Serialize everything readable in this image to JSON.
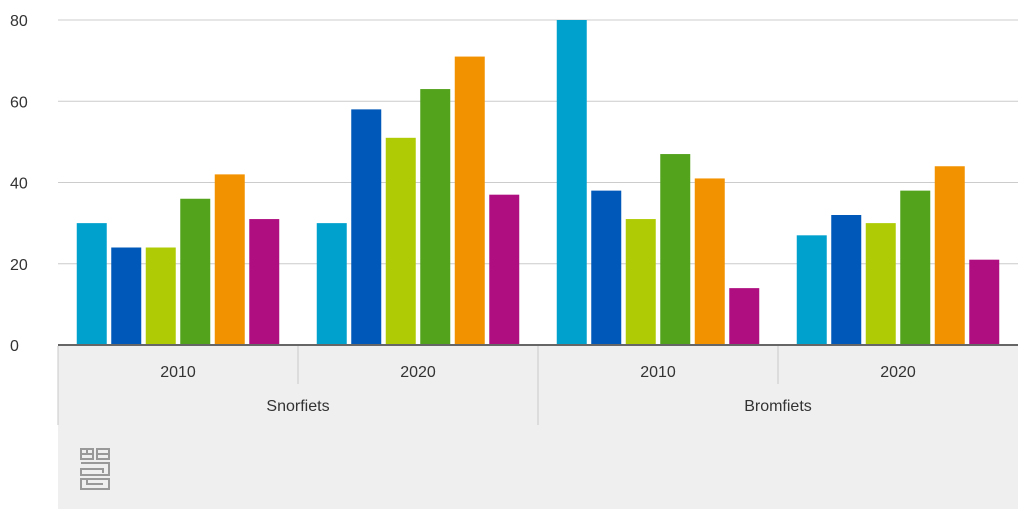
{
  "chart_data": {
    "type": "bar",
    "groups": [
      {
        "label": "Snorfiets",
        "years": [
          "2010",
          "2020"
        ]
      },
      {
        "label": "Bromfiets",
        "years": [
          "2010",
          "2020"
        ]
      }
    ],
    "categories": [
      "Snorfiets 2010",
      "Snorfiets 2020",
      "Bromfiets 2010",
      "Bromfiets 2020"
    ],
    "series": [
      {
        "color": "#00a1cd",
        "values": [
          30,
          30,
          80,
          27
        ]
      },
      {
        "color": "#0058b8",
        "values": [
          24,
          58,
          38,
          32
        ]
      },
      {
        "color": "#afcb05",
        "values": [
          24,
          51,
          31,
          30
        ]
      },
      {
        "color": "#53a31d",
        "values": [
          36,
          63,
          47,
          38
        ]
      },
      {
        "color": "#f39200",
        "values": [
          42,
          71,
          41,
          44
        ]
      },
      {
        "color": "#af0e80",
        "values": [
          31,
          37,
          14,
          21
        ]
      }
    ],
    "yticks": [
      "0",
      "20",
      "40",
      "60",
      "80"
    ],
    "ylim": [
      0,
      80
    ],
    "grid": true,
    "legend": "none"
  },
  "colors": {
    "grid": "#cccccc",
    "axis": "#666666",
    "panel": "#efefef",
    "logo": "#999999"
  },
  "logo_icon": "cbs-logo-icon"
}
